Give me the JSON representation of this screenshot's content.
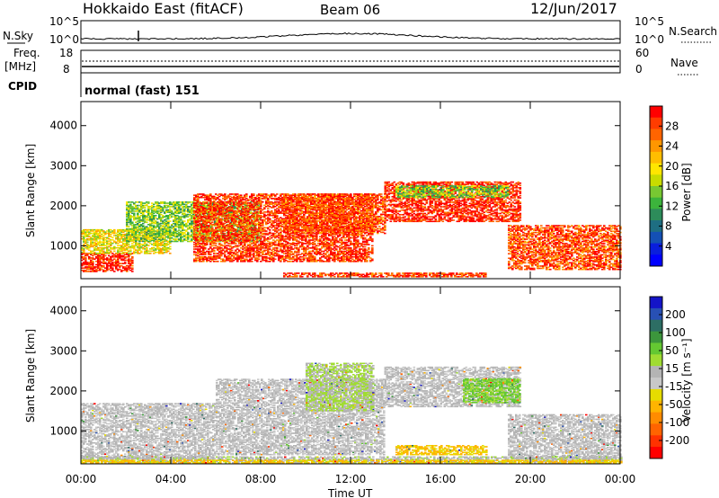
{
  "header": {
    "title": "Hokkaido East (fitACF)",
    "beam": "Beam 06",
    "date": "12/Jun/2017"
  },
  "top_panels": {
    "nsky_label": "N.Sky",
    "nsearch_label": "N.Search",
    "nsky_ticks": [
      "10^5",
      "10^0"
    ],
    "nsearch_ticks": [
      "10^5",
      "10^0"
    ],
    "freq_label_1": "Freq.",
    "freq_label_2": "[MHz]",
    "freq_ticks": [
      "18",
      "8"
    ],
    "nave_label": "Nave",
    "nave_ticks": [
      "60",
      "0"
    ],
    "cpid_label": "CPID",
    "cpid_text": "normal (fast) 151"
  },
  "colorbars": {
    "power": {
      "label": "Power [dB]",
      "ticks": [
        "28",
        "24",
        "20",
        "16",
        "12",
        "8",
        "4"
      ],
      "colors": [
        "#ff0000",
        "#ff3c00",
        "#ff6400",
        "#ff9600",
        "#ffbe00",
        "#ffe600",
        "#c8dc00",
        "#78c832",
        "#3cb43c",
        "#2d8c5a",
        "#1e6e82",
        "#1450b4",
        "#0a1edc",
        "#0000ff"
      ]
    },
    "velocity": {
      "label": "Velocity [m s⁻¹]",
      "ticks": [
        "200",
        "100",
        "50",
        "15",
        "-15",
        "-50",
        "-100",
        "-200"
      ],
      "colors": [
        "#1414c8",
        "#2850b4",
        "#2d6e64",
        "#3c963c",
        "#64c832",
        "#a0dc32",
        "#b4b4b4",
        "#c8c8c8",
        "#e6dc00",
        "#ffb400",
        "#ff8c00",
        "#ff6400",
        "#ff3200",
        "#ff0000"
      ]
    }
  },
  "axes": {
    "ylabel": "Slant Range [km]",
    "xlabel": "Time UT",
    "yticks": [
      "4000",
      "3000",
      "2000",
      "1000"
    ],
    "xticks": [
      "00:00",
      "04:00",
      "08:00",
      "12:00",
      "16:00",
      "20:00",
      "00:00"
    ]
  },
  "chart_data": [
    {
      "type": "heatmap",
      "quantity": "Power",
      "xlabel": "Time UT",
      "ylabel": "Slant Range [km]",
      "ylim": [
        180,
        4600
      ],
      "xlim": [
        "00:00",
        "24:00"
      ],
      "colorbar_range": [
        0,
        30
      ],
      "regions": [
        {
          "t0": 0.0,
          "t1": 2.3,
          "r0": 350,
          "r1": 800,
          "value": 28
        },
        {
          "t0": 0.0,
          "t1": 4.0,
          "r0": 800,
          "r1": 1400,
          "value": 18
        },
        {
          "t0": 2.0,
          "t1": 8.0,
          "r0": 1100,
          "r1": 2100,
          "value": 14
        },
        {
          "t0": 5.0,
          "t1": 13.0,
          "r0": 600,
          "r1": 2300,
          "value": 27
        },
        {
          "t0": 9.0,
          "t1": 13.5,
          "r0": 1300,
          "r1": 2300,
          "value": 26
        },
        {
          "t0": 13.5,
          "t1": 19.5,
          "r0": 1600,
          "r1": 2600,
          "value": 28
        },
        {
          "t0": 14.0,
          "t1": 19.0,
          "r0": 2200,
          "r1": 2500,
          "value": 14
        },
        {
          "t0": 19.0,
          "t1": 24.0,
          "r0": 400,
          "r1": 1500,
          "value": 26
        },
        {
          "t0": 9.0,
          "t1": 18.0,
          "r0": 220,
          "r1": 320,
          "value": 27
        }
      ]
    },
    {
      "type": "heatmap",
      "quantity": "Velocity",
      "xlabel": "Time UT",
      "ylabel": "Slant Range [km]",
      "ylim": [
        180,
        4600
      ],
      "xlim": [
        "00:00",
        "24:00"
      ],
      "colorbar_range": [
        -200,
        200
      ],
      "regions": [
        {
          "t0": 0.0,
          "t1": 6.0,
          "r0": 300,
          "r1": 1700,
          "value": 0
        },
        {
          "t0": 6.0,
          "t1": 13.5,
          "r0": 400,
          "r1": 2300,
          "value": 0
        },
        {
          "t0": 13.5,
          "t1": 19.5,
          "r0": 1600,
          "r1": 2600,
          "value": 0
        },
        {
          "t0": 19.0,
          "t1": 24.0,
          "r0": 300,
          "r1": 1400,
          "value": 0
        },
        {
          "t0": 10.0,
          "t1": 13.0,
          "r0": 1500,
          "r1": 2700,
          "value": 30
        },
        {
          "t0": 17.0,
          "t1": 19.5,
          "r0": 1700,
          "r1": 2300,
          "value": 60
        },
        {
          "t0": 0.0,
          "t1": 24.0,
          "r0": 200,
          "r1": 350,
          "value": 20
        },
        {
          "t0": 14.0,
          "t1": 18.0,
          "r0": 400,
          "r1": 650,
          "value": -60
        },
        {
          "t0": 0.0,
          "t1": 24.0,
          "r0": 200,
          "r1": 260,
          "value": -60
        }
      ]
    }
  ]
}
